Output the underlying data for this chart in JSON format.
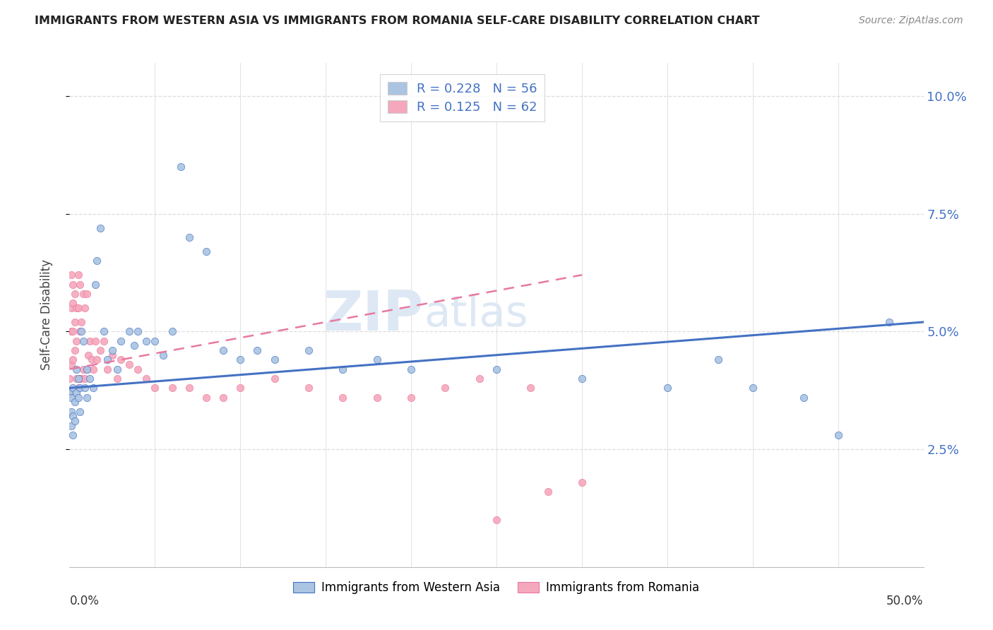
{
  "title": "IMMIGRANTS FROM WESTERN ASIA VS IMMIGRANTS FROM ROMANIA SELF-CARE DISABILITY CORRELATION CHART",
  "source": "Source: ZipAtlas.com",
  "ylabel": "Self-Care Disability",
  "ytick_vals": [
    0.025,
    0.05,
    0.075,
    0.1
  ],
  "ytick_labels": [
    "2.5%",
    "5.0%",
    "7.5%",
    "10.0%"
  ],
  "xlim": [
    0.0,
    0.5
  ],
  "ylim": [
    0.0,
    0.107
  ],
  "color_wa": "#aac4e2",
  "color_ro": "#f5a8bc",
  "line_wa": "#4472c4",
  "line_ro": "#e879a0",
  "background": "#ffffff",
  "grid_color": "#dddddd",
  "wa_x": [
    0.0,
    0.001,
    0.001,
    0.001,
    0.002,
    0.002,
    0.002,
    0.003,
    0.003,
    0.004,
    0.004,
    0.005,
    0.005,
    0.006,
    0.006,
    0.007,
    0.008,
    0.009,
    0.01,
    0.01,
    0.012,
    0.014,
    0.015,
    0.016,
    0.018,
    0.02,
    0.022,
    0.025,
    0.028,
    0.03,
    0.035,
    0.038,
    0.04,
    0.045,
    0.05,
    0.055,
    0.06,
    0.065,
    0.07,
    0.08,
    0.09,
    0.1,
    0.11,
    0.12,
    0.14,
    0.16,
    0.18,
    0.2,
    0.25,
    0.3,
    0.35,
    0.38,
    0.4,
    0.43,
    0.45,
    0.48
  ],
  "wa_y": [
    0.037,
    0.036,
    0.033,
    0.03,
    0.038,
    0.032,
    0.028,
    0.035,
    0.031,
    0.037,
    0.042,
    0.04,
    0.036,
    0.038,
    0.033,
    0.05,
    0.048,
    0.038,
    0.042,
    0.036,
    0.04,
    0.038,
    0.06,
    0.065,
    0.072,
    0.05,
    0.044,
    0.046,
    0.042,
    0.048,
    0.05,
    0.047,
    0.05,
    0.048,
    0.048,
    0.045,
    0.05,
    0.085,
    0.07,
    0.067,
    0.046,
    0.044,
    0.046,
    0.044,
    0.046,
    0.042,
    0.044,
    0.042,
    0.042,
    0.04,
    0.038,
    0.044,
    0.038,
    0.036,
    0.028,
    0.052
  ],
  "ro_x": [
    0.0,
    0.0,
    0.001,
    0.001,
    0.001,
    0.001,
    0.002,
    0.002,
    0.002,
    0.002,
    0.003,
    0.003,
    0.003,
    0.004,
    0.004,
    0.004,
    0.005,
    0.005,
    0.005,
    0.006,
    0.006,
    0.006,
    0.007,
    0.007,
    0.008,
    0.008,
    0.009,
    0.009,
    0.01,
    0.01,
    0.011,
    0.012,
    0.013,
    0.014,
    0.015,
    0.016,
    0.018,
    0.02,
    0.022,
    0.025,
    0.028,
    0.03,
    0.035,
    0.04,
    0.045,
    0.05,
    0.06,
    0.07,
    0.08,
    0.09,
    0.1,
    0.12,
    0.14,
    0.16,
    0.18,
    0.2,
    0.22,
    0.24,
    0.25,
    0.27,
    0.28,
    0.3
  ],
  "ro_y": [
    0.04,
    0.037,
    0.062,
    0.055,
    0.05,
    0.043,
    0.06,
    0.056,
    0.05,
    0.044,
    0.058,
    0.052,
    0.046,
    0.055,
    0.048,
    0.04,
    0.062,
    0.055,
    0.038,
    0.06,
    0.05,
    0.04,
    0.052,
    0.04,
    0.058,
    0.042,
    0.055,
    0.04,
    0.058,
    0.042,
    0.045,
    0.048,
    0.044,
    0.042,
    0.048,
    0.044,
    0.046,
    0.048,
    0.042,
    0.045,
    0.04,
    0.044,
    0.043,
    0.042,
    0.04,
    0.038,
    0.038,
    0.038,
    0.036,
    0.036,
    0.038,
    0.04,
    0.038,
    0.036,
    0.036,
    0.036,
    0.038,
    0.04,
    0.01,
    0.038,
    0.016,
    0.018
  ],
  "wa_trend_x": [
    0.0,
    0.5
  ],
  "wa_trend_y": [
    0.038,
    0.052
  ],
  "ro_trend_x": [
    0.0,
    0.3
  ],
  "ro_trend_y": [
    0.042,
    0.062
  ]
}
